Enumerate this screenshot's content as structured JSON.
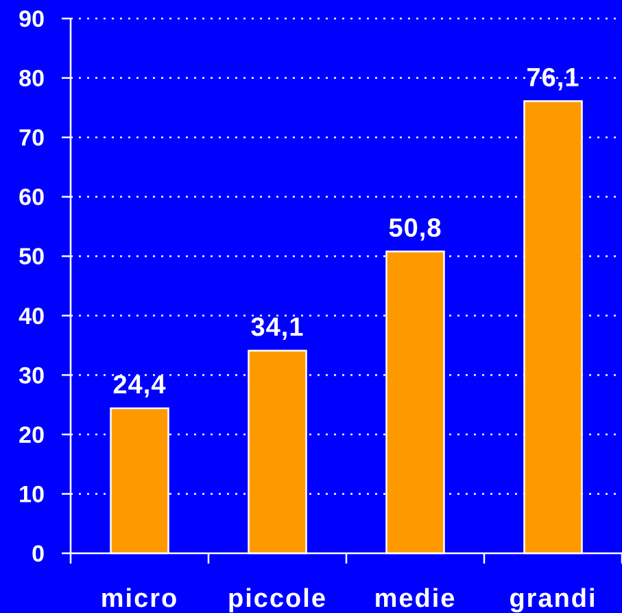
{
  "chart_data": {
    "type": "bar",
    "categories": [
      "micro",
      "piccole",
      "medie",
      "grandi"
    ],
    "values": [
      24.4,
      34.1,
      50.8,
      76.1
    ],
    "data_labels": [
      "24,4",
      "34,1",
      "50,8",
      "76,1"
    ],
    "title": "",
    "xlabel": "",
    "ylabel": "",
    "ylim": [
      0,
      90
    ],
    "yticks": [
      0,
      10,
      20,
      30,
      40,
      50,
      60,
      70,
      80,
      90
    ],
    "grid": true,
    "legend": "none",
    "colors": {
      "background": "#0000ff",
      "bar": "#ff9900",
      "bar_outline": "#ffffff",
      "text": "#ffffff",
      "grid": "#ffffff"
    }
  }
}
